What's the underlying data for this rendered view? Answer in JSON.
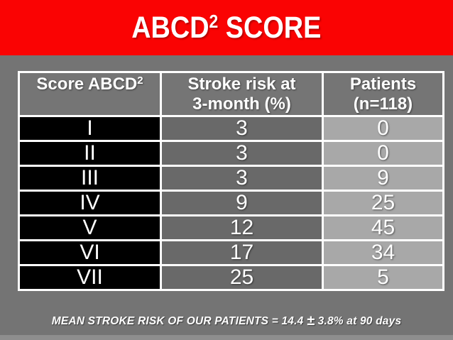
{
  "slide": {
    "title": {
      "base": "ABCD",
      "superscript": "2",
      "rest": " SCORE"
    },
    "footer": {
      "before": "MEAN STROKE RISK OF OUR PATIENTS = 14.4 ",
      "plus_minus": "±",
      "after": " 3.8% at 90 days"
    }
  },
  "table": {
    "columns": {
      "score": {
        "label": "Score ABCD",
        "superscript": "2"
      },
      "risk": {
        "line1": "Stroke risk at",
        "line2": "3-month (%)"
      },
      "patients": {
        "line1": "Patients",
        "line2": "(n=118)"
      }
    },
    "rows": [
      {
        "score": "I",
        "risk": "3",
        "patients": "0"
      },
      {
        "score": "II",
        "risk": "3",
        "patients": "0"
      },
      {
        "score": "III",
        "risk": "3",
        "patients": "9"
      },
      {
        "score": "IV",
        "risk": "9",
        "patients": "25"
      },
      {
        "score": "V",
        "risk": "12",
        "patients": "45"
      },
      {
        "score": "VI",
        "risk": "17",
        "patients": "34"
      },
      {
        "score": "VII",
        "risk": "25",
        "patients": "5"
      }
    ]
  },
  "colors": {
    "banner": "#fa0303",
    "background": "#747474",
    "header_cell": "#757575",
    "score_cell": "#000000",
    "risk_cell": "#696969",
    "patients_cell": "#a8a8a8",
    "border": "#ffffff",
    "bottom_strip": "#8e8e8e",
    "text": "#ffffff"
  }
}
